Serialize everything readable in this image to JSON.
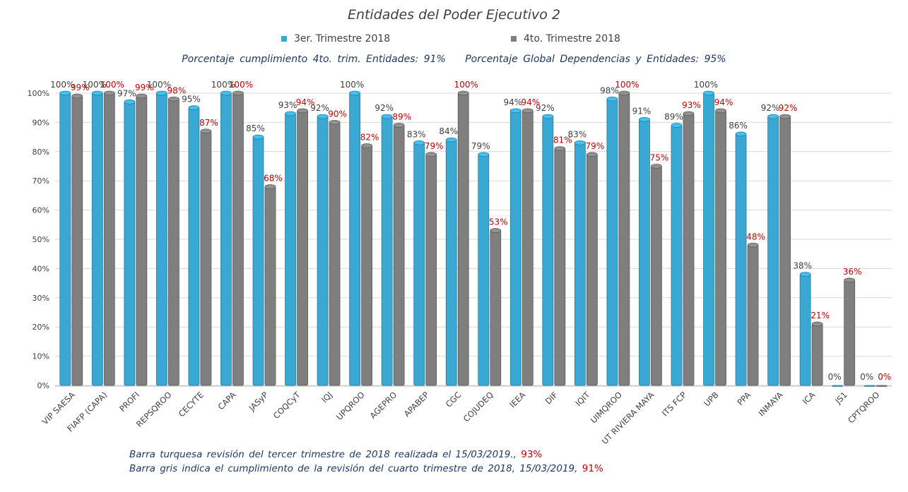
{
  "chart_data": {
    "type": "bar",
    "title": "Entidades del Poder Ejecutivo 2",
    "subtitle_left": "Porcentaje cumplimiento 4to. trim. Entidades: 91%",
    "subtitle_right": "Porcentaje Global Dependencias y Entidades: 95%",
    "categories": [
      "VIP SAESA",
      "FIAFP (CAPA)",
      "PROFI",
      "REPSQROO",
      "CECYTE",
      "CAPA",
      "JASyP",
      "COQCyT",
      "IQJ",
      "UPQROO",
      "AGEPRO",
      "APABEP",
      "CGC",
      "COJUDEQ",
      "IEEA",
      "DIF",
      "IQIT",
      "UIMQROO",
      "UT RIVIERA MAYA",
      "ITS FCP",
      "UPB",
      "PPA",
      "INMAYA",
      "ICA",
      "JS1",
      "CPTQROO"
    ],
    "series": [
      {
        "name": "3er. Trimestre 2018",
        "color": "#39a9d4",
        "values": [
          100,
          100,
          97,
          100,
          95,
          100,
          85,
          93,
          92,
          100,
          92,
          83,
          84,
          79,
          94,
          92,
          83,
          98,
          91,
          89,
          100,
          86,
          92,
          38,
          0,
          0
        ],
        "labels": [
          "100%",
          "100%",
          "97%",
          "100%",
          "95%",
          "100%",
          "85%",
          "93%",
          "92%",
          "100%",
          "92%",
          "83%",
          "84%",
          "79%",
          "94%",
          "92%",
          "83%",
          "98%",
          "91%",
          "89%",
          "100%",
          "86%",
          "92%",
          "38%",
          "0%",
          "0%"
        ]
      },
      {
        "name": "4to. Trimestre 2018",
        "color": "#7f7f7f",
        "values": [
          99,
          100,
          99,
          98,
          87,
          100,
          68,
          94,
          90,
          82,
          89,
          79,
          100,
          53,
          94,
          81,
          79,
          100,
          75,
          93,
          94,
          48,
          92,
          21,
          36,
          0
        ],
        "labels": [
          "99%",
          "100%",
          "99%",
          "98%",
          "87%",
          "100%",
          "68%",
          "94%",
          "90%",
          "82%",
          "89%",
          "79%",
          "100%",
          "53%",
          "94%",
          "81%",
          "79%",
          "100%",
          "75%",
          "93%",
          "94%",
          "48%",
          "92%",
          "21%",
          "36%",
          "0%"
        ]
      }
    ],
    "ylim": [
      0,
      100
    ],
    "yticks": [
      "0%",
      "10%",
      "20%",
      "30%",
      "40%",
      "50%",
      "60%",
      "70%",
      "80%",
      "90%",
      "100%"
    ],
    "grid": true,
    "legend": "top"
  },
  "notes": {
    "line1_text": "Barra turquesa revisión del tercer trimestre de 2018 realizada el 15/03/2019.,",
    "line1_value": "93%",
    "line2_text": "Barra gris indica el cumplimiento de la revisión del cuarto trimestre de 2018, 15/03/2019,",
    "line2_value": "91%"
  },
  "colors": {
    "label3": "#404040",
    "label4": "#c00000",
    "note": "#1f3864",
    "grid": "#d9d9d9"
  }
}
